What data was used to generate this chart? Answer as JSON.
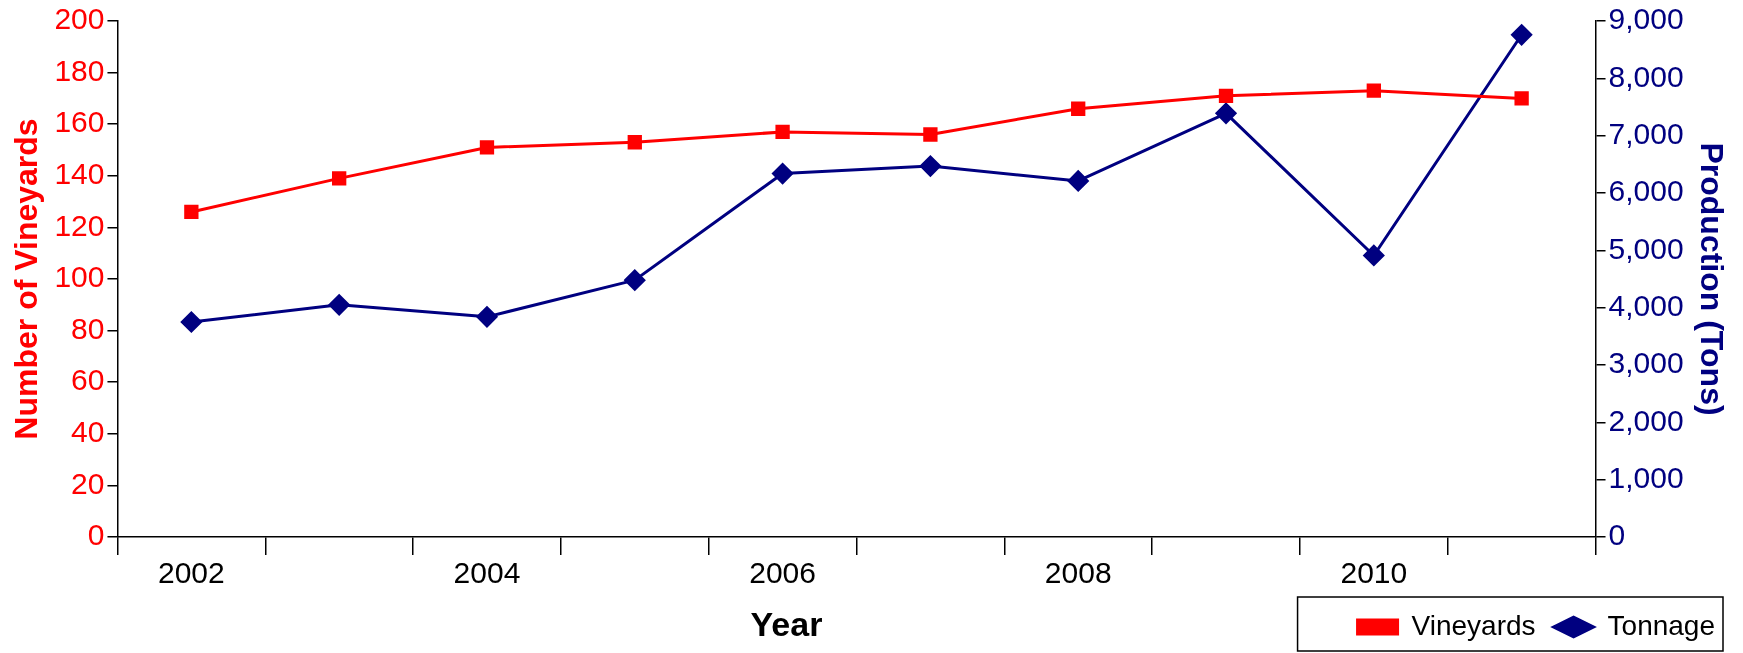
{
  "chart_data": {
    "type": "line",
    "xlabel": "Year",
    "ylabel": "Number of Vineyards",
    "y2label": "Production (Tons)",
    "categories": [
      "2002",
      null,
      "2004",
      null,
      "2006",
      null,
      "2008",
      null,
      "2010",
      null
    ],
    "series": [
      {
        "name": "Vineyards",
        "color": "#ff0000",
        "marker": "square",
        "values": [
          126,
          139,
          151,
          153,
          157,
          156,
          166,
          171,
          173,
          170
        ]
      },
      {
        "name": "Tonnage",
        "color": "#000080",
        "marker": "diamond",
        "axis": "y2",
        "values": [
          3750,
          4050,
          3840,
          4480,
          6340,
          6470,
          6210,
          7390,
          4910,
          8760
        ]
      }
    ],
    "ylim": [
      0,
      200
    ],
    "yticks": [
      0,
      20,
      40,
      60,
      80,
      100,
      120,
      140,
      160,
      180,
      200
    ],
    "y2lim": [
      0,
      9000
    ],
    "y2ticks": [
      {
        "value": 0,
        "label": "0"
      },
      {
        "value": 1000,
        "label": "1,000"
      },
      {
        "value": 2000,
        "label": "2,000"
      },
      {
        "value": 3000,
        "label": "3,000"
      },
      {
        "value": 4000,
        "label": "4,000"
      },
      {
        "value": 5000,
        "label": "5,000"
      },
      {
        "value": 6000,
        "label": "6,000"
      },
      {
        "value": 7000,
        "label": "7,000"
      },
      {
        "value": 8000,
        "label": "8,000"
      },
      {
        "value": 9000,
        "label": "9,000"
      }
    ],
    "grid": false,
    "legend": "bottom right",
    "line_style": "solid"
  }
}
